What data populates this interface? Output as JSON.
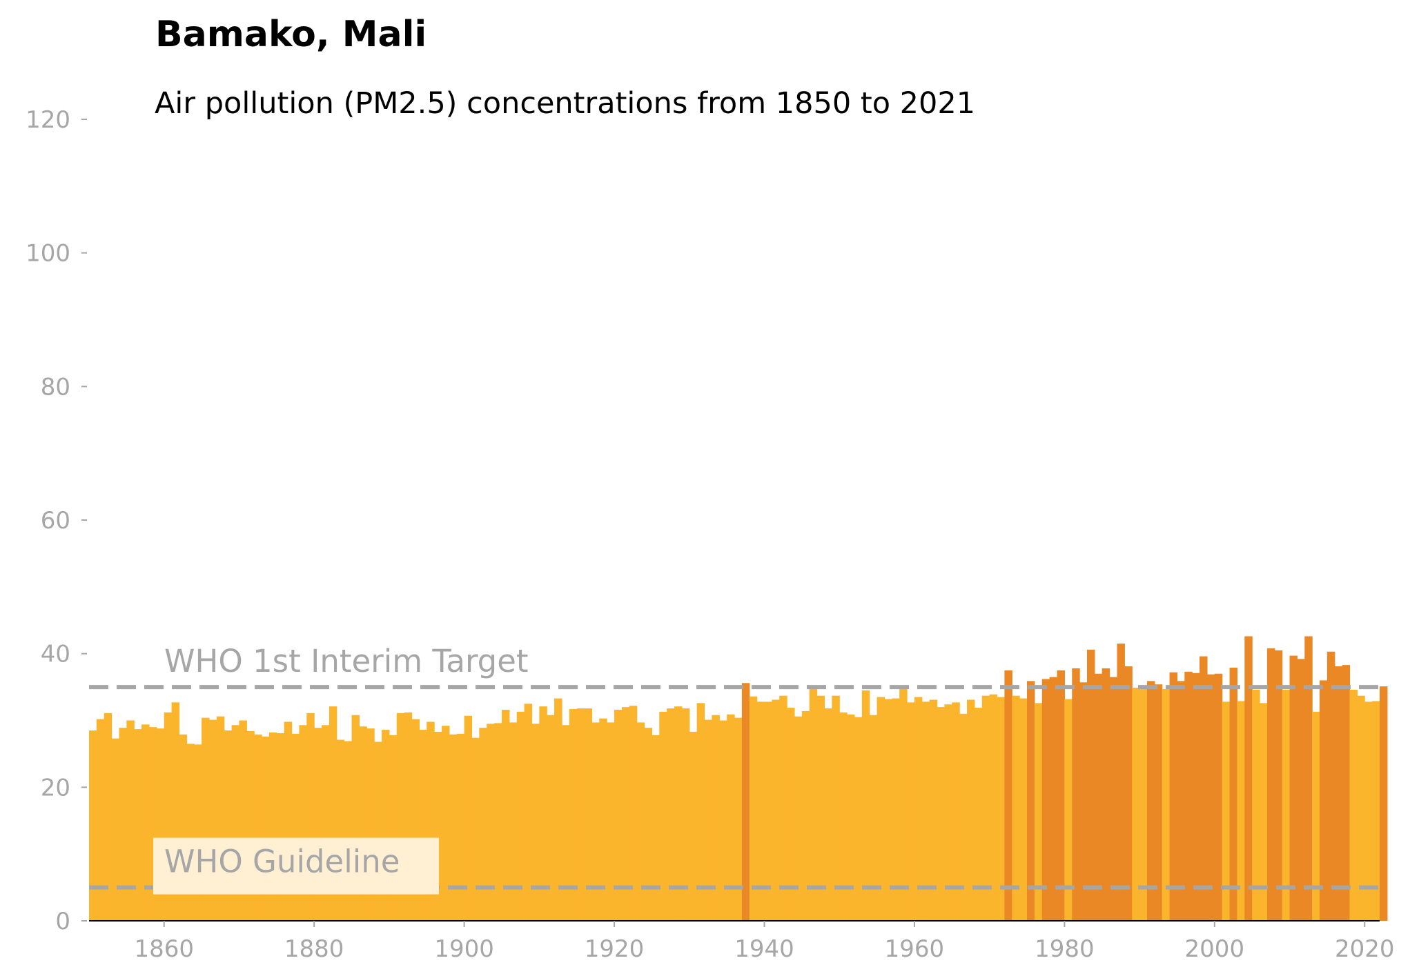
{
  "chart_data": {
    "type": "bar",
    "title": "Bamako, Mali",
    "subtitle": "Air pollution (PM2.5) concentrations from 1850 to 2021",
    "xlabel": "",
    "ylabel": "",
    "x_start": 1850,
    "x_end": 2021,
    "xlim": [
      1850,
      2022
    ],
    "ylim": [
      0,
      120
    ],
    "y_ticks": [
      0,
      20,
      40,
      60,
      80,
      100,
      120
    ],
    "x_ticks": [
      1860,
      1880,
      1900,
      1920,
      1940,
      1960,
      1980,
      2000,
      2020
    ],
    "grid": false,
    "reference_lines": [
      {
        "label": "WHO 1st Interim Target",
        "value": 35
      },
      {
        "label": "WHO Guideline",
        "value": 5
      }
    ],
    "colors": {
      "below_target": "#fbb52d",
      "above_target": "#e98825",
      "reference_line": "#a6a6a6",
      "tick_text": "#a6a6a6"
    },
    "values": [
      28.5,
      30.2,
      31.1,
      27.3,
      28.9,
      30.0,
      28.7,
      29.4,
      29.0,
      28.8,
      31.2,
      32.7,
      27.9,
      26.5,
      26.4,
      30.4,
      30.1,
      30.6,
      28.5,
      29.3,
      30.0,
      28.4,
      27.9,
      27.6,
      28.2,
      28.1,
      29.8,
      28.0,
      29.3,
      31.1,
      28.9,
      29.3,
      32.1,
      27.1,
      26.9,
      30.8,
      29.1,
      28.8,
      26.8,
      28.6,
      27.8,
      31.1,
      31.2,
      30.2,
      28.6,
      29.8,
      28.3,
      29.2,
      27.9,
      28.0,
      30.7,
      27.4,
      28.9,
      29.5,
      29.6,
      31.6,
      29.7,
      31.3,
      32.5,
      29.5,
      32.1,
      30.8,
      33.3,
      29.3,
      31.7,
      31.8,
      31.8,
      29.7,
      30.3,
      29.7,
      31.6,
      32.0,
      32.2,
      29.7,
      28.9,
      27.8,
      31.3,
      31.8,
      32.1,
      31.8,
      28.3,
      32.6,
      30.1,
      30.8,
      30.0,
      30.9,
      30.4,
      35.6,
      33.6,
      32.8,
      32.8,
      33.1,
      33.7,
      31.9,
      30.6,
      31.4,
      34.8,
      33.7,
      31.8,
      33.7,
      31.2,
      30.9,
      30.5,
      34.5,
      30.8,
      33.5,
      33.2,
      33.3,
      34.8,
      32.7,
      33.5,
      32.8,
      33.1,
      32.0,
      32.4,
      32.7,
      31.0,
      33.1,
      31.9,
      33.7,
      33.9,
      33.5,
      37.5,
      33.7,
      33.3,
      35.9,
      32.6,
      36.2,
      36.5,
      37.5,
      33.2,
      37.8,
      35.7,
      40.6,
      37.0,
      37.8,
      36.5,
      41.5,
      38.1,
      34.9,
      34.9,
      35.9,
      35.4,
      34.7,
      37.2,
      35.9,
      37.3,
      37.1,
      39.6,
      36.9,
      37.0,
      32.8,
      37.9,
      32.9,
      42.6,
      34.6,
      32.6,
      40.8,
      40.5,
      34.6,
      39.7,
      39.2,
      42.6,
      31.3,
      36.0,
      40.3,
      38.1,
      38.3,
      34.6,
      33.7,
      32.8,
      32.9,
      35.1
    ]
  }
}
